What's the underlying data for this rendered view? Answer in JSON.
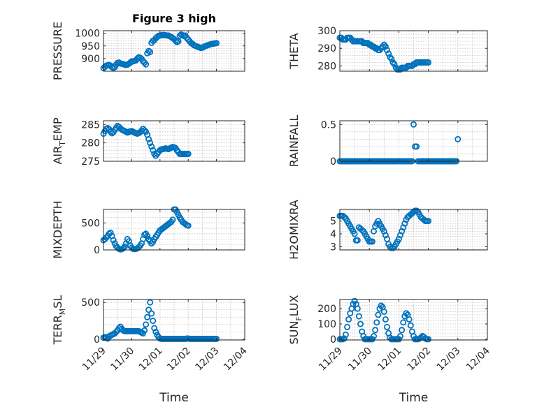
{
  "figure_title": "Figure 3 high",
  "colors": {
    "marker": "#0072BD",
    "axis": "#262626",
    "grid": "#bfbfbf"
  },
  "chart_data": [
    {
      "type": "scatter",
      "title": "Figure 3 high",
      "ylabel": "PRESSURE",
      "xlabel": "",
      "xlim": [
        0,
        5
      ],
      "ylim": [
        850,
        1010
      ],
      "yticks": [
        900,
        950,
        1000
      ],
      "xticks": [
        0,
        1,
        2,
        3,
        4,
        5
      ],
      "xticklabels": [],
      "grid": true,
      "x": [
        0,
        0.05,
        0.1,
        0.15,
        0.2,
        0.25,
        0.3,
        0.35,
        0.4,
        0.45,
        0.5,
        0.55,
        0.6,
        0.65,
        0.7,
        0.75,
        0.8,
        0.85,
        0.9,
        0.95,
        1,
        1.05,
        1.1,
        1.15,
        1.2,
        1.25,
        1.3,
        1.35,
        1.4,
        1.45,
        1.5,
        1.55,
        1.6,
        1.65,
        1.7,
        1.75,
        1.8,
        1.85,
        1.9,
        1.95,
        2,
        2.05,
        2.1,
        2.15,
        2.2,
        2.25,
        2.3,
        2.35,
        2.4,
        2.45,
        2.5,
        2.55,
        2.6,
        2.65,
        2.7,
        2.75,
        2.8,
        2.85,
        2.9,
        2.95,
        3,
        3.05,
        3.1,
        3.15,
        3.2,
        3.25,
        3.3,
        3.35,
        3.4,
        3.45,
        3.5,
        3.55,
        3.6,
        3.65,
        3.7,
        3.75,
        3.8,
        3.85,
        3.9,
        3.95,
        4
      ],
      "y": [
        862,
        867,
        872,
        874,
        875,
        872,
        866,
        863,
        866,
        876,
        883,
        884,
        881,
        879,
        878,
        876,
        875,
        876,
        880,
        884,
        889,
        889,
        891,
        893,
        900,
        905,
        903,
        898,
        889,
        884,
        877,
        921,
        930,
        926,
        962,
        970,
        973,
        980,
        985,
        990,
        991,
        992,
        993,
        993,
        992,
        991,
        991,
        988,
        985,
        981,
        977,
        970,
        965,
        968,
        990,
        995,
        992,
        989,
        991,
        982,
        975,
        968,
        962,
        958,
        953,
        950,
        948,
        946,
        944,
        942,
        943,
        946,
        949,
        951,
        953,
        955,
        957,
        958,
        959,
        960,
        961
      ]
    },
    {
      "type": "scatter",
      "ylabel": "THETA",
      "xlabel": "",
      "xlim": [
        0,
        5
      ],
      "ylim": [
        277,
        300
      ],
      "yticks": [
        280,
        290,
        300
      ],
      "xticks": [
        0,
        1,
        2,
        3,
        4,
        5
      ],
      "xticklabels": [],
      "grid": true,
      "x": [
        0,
        0.05,
        0.1,
        0.15,
        0.2,
        0.25,
        0.3,
        0.35,
        0.4,
        0.45,
        0.5,
        0.55,
        0.6,
        0.65,
        0.7,
        0.75,
        0.8,
        0.85,
        0.9,
        0.95,
        1,
        1.05,
        1.1,
        1.15,
        1.2,
        1.25,
        1.3,
        1.35,
        1.4,
        1.45,
        1.5,
        1.55,
        1.6,
        1.65,
        1.7,
        1.75,
        1.8,
        1.85,
        1.9,
        1.95,
        2,
        2.05,
        2.1,
        2.15,
        2.2,
        2.25,
        2.3,
        2.35,
        2.4,
        2.45,
        2.5,
        2.55,
        2.6,
        2.65,
        2.7,
        2.75,
        2.8,
        2.85,
        2.9,
        2.95,
        3
      ],
      "y": [
        296,
        296,
        295,
        295,
        295,
        296,
        296,
        296,
        295,
        294,
        294,
        294,
        294,
        294,
        294,
        294,
        293,
        293,
        293,
        293,
        292,
        292,
        291,
        291,
        290,
        290,
        289,
        289,
        290,
        291,
        292,
        291,
        289,
        287,
        285,
        284,
        282,
        281,
        279,
        278,
        278,
        278,
        279,
        279,
        279,
        279,
        280,
        280,
        280,
        280,
        281,
        281,
        282,
        282,
        282,
        282,
        282,
        282,
        282,
        282,
        282
      ]
    },
    {
      "type": "scatter",
      "ylabel": "AIR_TEMP",
      "xlabel": "",
      "xlim": [
        0,
        5
      ],
      "ylim": [
        275,
        286
      ],
      "yticks": [
        275,
        280,
        285
      ],
      "xticks": [
        0,
        1,
        2,
        3,
        4,
        5
      ],
      "xticklabels": [],
      "grid": true,
      "x": [
        0,
        0.05,
        0.1,
        0.15,
        0.2,
        0.25,
        0.3,
        0.35,
        0.4,
        0.45,
        0.5,
        0.55,
        0.6,
        0.65,
        0.7,
        0.75,
        0.8,
        0.85,
        0.9,
        0.95,
        1,
        1.05,
        1.1,
        1.15,
        1.2,
        1.25,
        1.3,
        1.35,
        1.4,
        1.45,
        1.5,
        1.55,
        1.6,
        1.65,
        1.7,
        1.75,
        1.8,
        1.85,
        1.9,
        1.95,
        2,
        2.05,
        2.1,
        2.15,
        2.2,
        2.25,
        2.3,
        2.35,
        2.4,
        2.45,
        2.5,
        2.55,
        2.6,
        2.65,
        2.7,
        2.75,
        2.8,
        2.85,
        2.9,
        2.95,
        3
      ],
      "y": [
        282.5,
        283.2,
        283.8,
        284,
        283.7,
        283,
        282.6,
        282.9,
        283.5,
        284.1,
        284.6,
        284.3,
        283.9,
        283.6,
        283.4,
        283.2,
        283,
        282.8,
        283,
        283.1,
        283.2,
        283,
        282.8,
        282.6,
        282.5,
        282.7,
        282.9,
        283.3,
        283.8,
        283.4,
        283,
        282.2,
        281,
        280,
        279,
        278,
        277,
        276.5,
        277,
        277.5,
        278,
        278.2,
        278.3,
        278.4,
        278.5,
        278.4,
        278.3,
        278.5,
        278.7,
        278.9,
        278.8,
        278.6,
        278,
        277.5,
        277,
        277,
        277,
        277,
        277,
        277,
        277
      ]
    },
    {
      "type": "scatter",
      "ylabel": "RAINFALL",
      "xlabel": "",
      "xlim": [
        0,
        5
      ],
      "ylim": [
        0,
        0.55
      ],
      "yticks": [
        0,
        0.5
      ],
      "xticks": [
        0,
        1,
        2,
        3,
        4,
        5
      ],
      "xticklabels": [],
      "grid": true,
      "x": [
        0,
        0.05,
        0.1,
        0.15,
        0.2,
        0.25,
        0.3,
        0.35,
        0.4,
        0.45,
        0.5,
        0.55,
        0.6,
        0.65,
        0.7,
        0.75,
        0.8,
        0.85,
        0.9,
        0.95,
        1,
        1.05,
        1.1,
        1.15,
        1.2,
        1.25,
        1.3,
        1.35,
        1.4,
        1.45,
        1.5,
        1.55,
        1.6,
        1.65,
        1.7,
        1.75,
        1.8,
        1.85,
        1.9,
        1.95,
        2,
        2.05,
        2.1,
        2.15,
        2.2,
        2.25,
        2.3,
        2.35,
        2.4,
        2.45,
        2.5,
        2.55,
        2.6,
        2.65,
        2.7,
        2.75,
        2.8,
        2.85,
        2.9,
        2.95,
        3,
        3.05,
        3.1,
        3.15,
        3.2,
        3.25,
        3.3,
        3.35,
        3.4,
        3.45,
        3.5,
        3.55,
        3.6,
        3.65,
        3.7,
        3.75,
        3.8,
        3.85,
        3.9,
        3.95,
        4
      ],
      "y": [
        0,
        0,
        0,
        0,
        0,
        0,
        0,
        0,
        0,
        0,
        0,
        0,
        0,
        0,
        0,
        0,
        0,
        0,
        0,
        0,
        0,
        0,
        0,
        0,
        0,
        0,
        0,
        0,
        0,
        0,
        0,
        0,
        0,
        0,
        0,
        0,
        0,
        0,
        0,
        0,
        0,
        0,
        0,
        0,
        0,
        0,
        0,
        0,
        0,
        0,
        0.5,
        0.2,
        0.2,
        0,
        0,
        0,
        0,
        0,
        0,
        0,
        0,
        0,
        0,
        0,
        0,
        0,
        0,
        0,
        0,
        0,
        0,
        0,
        0,
        0,
        0,
        0,
        0,
        0,
        0,
        0,
        0.3
      ]
    },
    {
      "type": "scatter",
      "ylabel": "MIXDEPTH",
      "xlabel": "",
      "xlim": [
        0,
        5
      ],
      "ylim": [
        0,
        750
      ],
      "yticks": [
        0,
        500
      ],
      "xticks": [
        0,
        1,
        2,
        3,
        4,
        5
      ],
      "xticklabels": [],
      "grid": true,
      "x": [
        0,
        0.05,
        0.1,
        0.15,
        0.2,
        0.25,
        0.3,
        0.35,
        0.4,
        0.45,
        0.5,
        0.55,
        0.6,
        0.65,
        0.7,
        0.75,
        0.8,
        0.85,
        0.9,
        0.95,
        1,
        1.05,
        1.1,
        1.15,
        1.2,
        1.25,
        1.3,
        1.35,
        1.4,
        1.45,
        1.5,
        1.55,
        1.6,
        1.65,
        1.7,
        1.75,
        1.8,
        1.85,
        1.9,
        1.95,
        2,
        2.05,
        2.1,
        2.15,
        2.2,
        2.25,
        2.3,
        2.35,
        2.4,
        2.45,
        2.5,
        2.55,
        2.6,
        2.65,
        2.7,
        2.75,
        2.8,
        2.85,
        2.9,
        2.95,
        3
      ],
      "y": [
        180,
        200,
        230,
        260,
        300,
        320,
        260,
        180,
        120,
        70,
        40,
        20,
        10,
        15,
        30,
        60,
        120,
        200,
        160,
        80,
        40,
        20,
        15,
        20,
        30,
        50,
        80,
        120,
        200,
        280,
        300,
        260,
        200,
        160,
        120,
        150,
        200,
        240,
        280,
        320,
        360,
        380,
        400,
        420,
        440,
        460,
        480,
        500,
        520,
        560,
        750,
        750,
        700,
        650,
        600,
        560,
        520,
        500,
        480,
        460,
        450
      ]
    },
    {
      "type": "scatter",
      "ylabel": "H2OMIXRA",
      "xlabel": "",
      "xlim": [
        0,
        5
      ],
      "ylim": [
        2.75,
        5.9
      ],
      "yticks": [
        3,
        4,
        5
      ],
      "xticks": [
        0,
        1,
        2,
        3,
        4,
        5
      ],
      "xticklabels": [],
      "grid": true,
      "x": [
        0,
        0.05,
        0.1,
        0.15,
        0.2,
        0.25,
        0.3,
        0.35,
        0.4,
        0.45,
        0.5,
        0.55,
        0.6,
        0.65,
        0.7,
        0.75,
        0.8,
        0.85,
        0.9,
        0.95,
        1,
        1.05,
        1.1,
        1.15,
        1.2,
        1.25,
        1.3,
        1.35,
        1.4,
        1.45,
        1.5,
        1.55,
        1.6,
        1.65,
        1.7,
        1.75,
        1.8,
        1.85,
        1.9,
        1.95,
        2,
        2.05,
        2.1,
        2.15,
        2.2,
        2.25,
        2.3,
        2.35,
        2.4,
        2.45,
        2.5,
        2.55,
        2.6,
        2.65,
        2.7,
        2.75,
        2.8,
        2.85,
        2.9,
        2.95,
        3
      ],
      "y": [
        5.4,
        5.4,
        5.4,
        5.3,
        5.2,
        5.0,
        4.8,
        4.6,
        4.4,
        4.2,
        4.0,
        3.5,
        3.5,
        4.5,
        4.4,
        4.3,
        4.2,
        4.0,
        3.8,
        3.6,
        3.4,
        3.4,
        3.4,
        4.2,
        4.6,
        4.8,
        5.0,
        4.8,
        4.6,
        4.4,
        4.2,
        3.9,
        3.6,
        3.2,
        3.0,
        2.9,
        2.9,
        3.0,
        3.2,
        3.4,
        3.6,
        3.9,
        4.2,
        4.5,
        4.8,
        5.1,
        5.3,
        5.4,
        5.5,
        5.6,
        5.7,
        5.8,
        5.8,
        5.7,
        5.5,
        5.3,
        5.2,
        5.1,
        5.0,
        5.0,
        5.0
      ]
    },
    {
      "type": "scatter",
      "ylabel": "TERR_MSL",
      "xlabel": "Time",
      "xlim": [
        0,
        5
      ],
      "ylim": [
        -10,
        540
      ],
      "yticks": [
        0,
        500
      ],
      "xticks": [
        0,
        1,
        2,
        3,
        4,
        5
      ],
      "xticklabels": [
        "11/29",
        "11/30",
        "12/01",
        "12/02",
        "12/03",
        "12/04"
      ],
      "grid": true,
      "x": [
        0,
        0.05,
        0.1,
        0.15,
        0.2,
        0.25,
        0.3,
        0.35,
        0.4,
        0.45,
        0.5,
        0.55,
        0.6,
        0.65,
        0.7,
        0.75,
        0.8,
        0.85,
        0.9,
        0.95,
        1,
        1.05,
        1.1,
        1.15,
        1.2,
        1.25,
        1.3,
        1.35,
        1.4,
        1.45,
        1.5,
        1.55,
        1.6,
        1.65,
        1.7,
        1.75,
        1.8,
        1.85,
        1.9,
        1.95,
        2,
        2.05,
        2.1,
        2.15,
        2.2,
        2.25,
        2.3,
        2.35,
        2.4,
        2.45,
        2.5,
        2.55,
        2.6,
        2.65,
        2.7,
        2.75,
        2.8,
        2.85,
        2.9,
        2.95,
        3,
        3.05,
        3.1,
        3.15,
        3.2,
        3.25,
        3.3,
        3.35,
        3.4,
        3.45,
        3.5,
        3.55,
        3.6,
        3.65,
        3.7,
        3.75,
        3.8,
        3.85,
        3.9,
        3.95,
        4
      ],
      "y": [
        20,
        30,
        20,
        10,
        40,
        50,
        60,
        70,
        80,
        100,
        120,
        150,
        170,
        140,
        120,
        110,
        110,
        110,
        110,
        110,
        110,
        110,
        110,
        110,
        110,
        110,
        100,
        90,
        80,
        120,
        200,
        300,
        400,
        500,
        350,
        250,
        150,
        100,
        60,
        30,
        10,
        5,
        5,
        5,
        5,
        5,
        5,
        5,
        5,
        5,
        5,
        5,
        5,
        5,
        5,
        5,
        5,
        5,
        5,
        10,
        10,
        5,
        5,
        5,
        5,
        5,
        5,
        5,
        5,
        5,
        5,
        5,
        5,
        5,
        5,
        5,
        5,
        5,
        5,
        5,
        5
      ]
    },
    {
      "type": "scatter",
      "ylabel": "SUN_FLUX",
      "xlabel": "Time",
      "xlim": [
        0,
        5
      ],
      "ylim": [
        -5,
        260
      ],
      "yticks": [
        0,
        100,
        200
      ],
      "xticks": [
        0,
        1,
        2,
        3,
        4,
        5
      ],
      "xticklabels": [
        "11/29",
        "11/30",
        "12/01",
        "12/02",
        "12/03",
        "12/04"
      ],
      "grid": true,
      "x": [
        0,
        0.05,
        0.1,
        0.15,
        0.2,
        0.25,
        0.3,
        0.35,
        0.4,
        0.45,
        0.5,
        0.55,
        0.6,
        0.65,
        0.7,
        0.75,
        0.8,
        0.85,
        0.9,
        0.95,
        1,
        1.05,
        1.1,
        1.15,
        1.2,
        1.25,
        1.3,
        1.35,
        1.4,
        1.45,
        1.5,
        1.55,
        1.6,
        1.65,
        1.7,
        1.75,
        1.8,
        1.85,
        1.9,
        1.95,
        2,
        2.05,
        2.1,
        2.15,
        2.2,
        2.25,
        2.3,
        2.35,
        2.4,
        2.45,
        2.5,
        2.55,
        2.6,
        2.65,
        2.7,
        2.75,
        2.8,
        2.85,
        2.9,
        2.95,
        3
      ],
      "y": [
        0,
        0,
        0,
        5,
        30,
        80,
        130,
        170,
        200,
        230,
        250,
        230,
        200,
        150,
        100,
        50,
        20,
        0,
        0,
        0,
        0,
        0,
        0,
        20,
        60,
        110,
        160,
        200,
        220,
        210,
        180,
        130,
        80,
        40,
        10,
        0,
        0,
        0,
        0,
        0,
        0,
        20,
        60,
        110,
        150,
        170,
        160,
        130,
        90,
        50,
        20,
        0,
        0,
        0,
        5,
        10,
        20,
        15,
        5,
        0,
        0
      ]
    }
  ]
}
